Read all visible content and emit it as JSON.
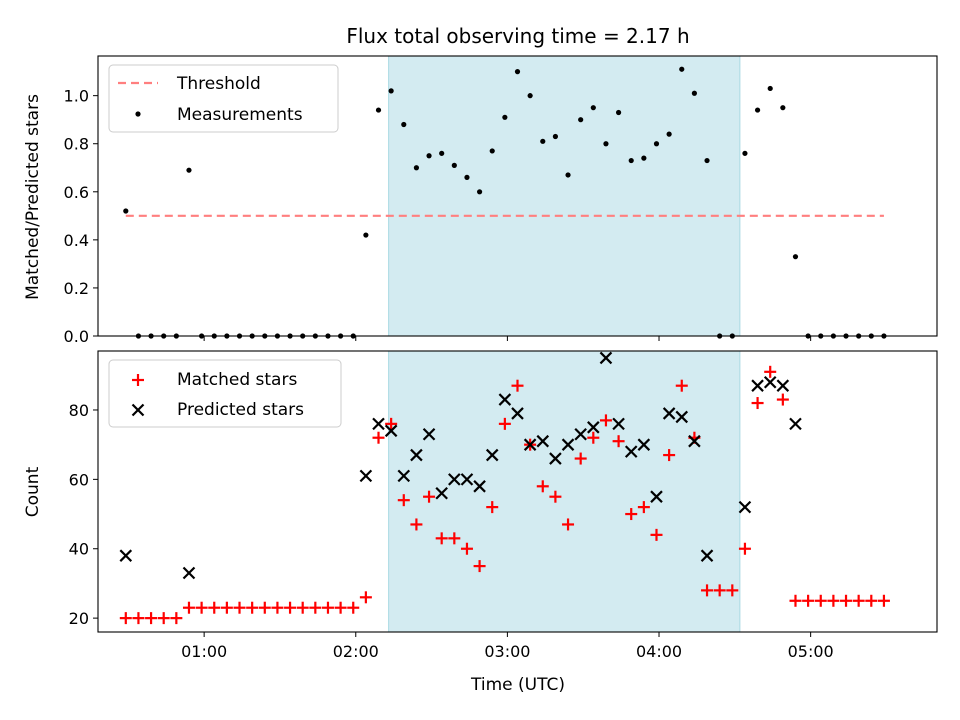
{
  "chart_data": [
    {
      "type": "scatter",
      "title": "Flux total observing time = 2.17 h",
      "xlabel": "",
      "ylabel": "Matched/Predicted stars",
      "ylim": [
        0,
        1.165
      ],
      "yticks": [
        "0.0",
        "0.2",
        "0.4",
        "0.6",
        "0.8",
        "1.0"
      ],
      "xlim": [
        "00:18",
        "05:50"
      ],
      "x_tick_marks": [
        "01:00",
        "02:00",
        "03:00",
        "04:00",
        "05:00"
      ],
      "shaded_interval": [
        "02:13",
        "04:32"
      ],
      "legend_position": "upper left",
      "threshold": {
        "name": "Threshold",
        "color": "#ff7f7f",
        "value": 0.5,
        "x": [
          "00:29",
          "05:29"
        ]
      },
      "series": [
        {
          "name": "Measurements",
          "color": "#000000",
          "points": [
            [
              "00:29",
              0.52
            ],
            [
              "00:34",
              0.0
            ],
            [
              "00:39",
              0.0
            ],
            [
              "00:44",
              0.0
            ],
            [
              "00:49",
              0.0
            ],
            [
              "00:54",
              0.69
            ],
            [
              "00:59",
              0.0
            ],
            [
              "01:04",
              0.0
            ],
            [
              "01:09",
              0.0
            ],
            [
              "01:14",
              0.0
            ],
            [
              "01:19",
              0.0
            ],
            [
              "01:24",
              0.0
            ],
            [
              "01:29",
              0.0
            ],
            [
              "01:34",
              0.0
            ],
            [
              "01:39",
              0.0
            ],
            [
              "01:44",
              0.0
            ],
            [
              "01:49",
              0.0
            ],
            [
              "01:54",
              0.0
            ],
            [
              "01:59",
              0.0
            ],
            [
              "02:04",
              0.42
            ],
            [
              "02:09",
              0.94
            ],
            [
              "02:14",
              1.02
            ],
            [
              "02:19",
              0.88
            ],
            [
              "02:24",
              0.7
            ],
            [
              "02:29",
              0.75
            ],
            [
              "02:34",
              0.76
            ],
            [
              "02:39",
              0.71
            ],
            [
              "02:44",
              0.66
            ],
            [
              "02:49",
              0.6
            ],
            [
              "02:54",
              0.77
            ],
            [
              "02:59",
              0.91
            ],
            [
              "03:04",
              1.1
            ],
            [
              "03:09",
              1.0
            ],
            [
              "03:14",
              0.81
            ],
            [
              "03:19",
              0.83
            ],
            [
              "03:24",
              0.67
            ],
            [
              "03:29",
              0.9
            ],
            [
              "03:34",
              0.95
            ],
            [
              "03:39",
              0.8
            ],
            [
              "03:44",
              0.93
            ],
            [
              "03:49",
              0.73
            ],
            [
              "03:54",
              0.74
            ],
            [
              "03:59",
              0.8
            ],
            [
              "04:04",
              0.84
            ],
            [
              "04:09",
              1.11
            ],
            [
              "04:14",
              1.01
            ],
            [
              "04:19",
              0.73
            ],
            [
              "04:24",
              0.0
            ],
            [
              "04:29",
              0.0
            ],
            [
              "04:34",
              0.76
            ],
            [
              "04:39",
              0.94
            ],
            [
              "04:44",
              1.03
            ],
            [
              "04:49",
              0.95
            ],
            [
              "04:54",
              0.33
            ],
            [
              "04:59",
              0.0
            ],
            [
              "05:04",
              0.0
            ],
            [
              "05:09",
              0.0
            ],
            [
              "05:14",
              0.0
            ],
            [
              "05:19",
              0.0
            ],
            [
              "05:24",
              0.0
            ],
            [
              "05:29",
              0.0
            ]
          ]
        }
      ]
    },
    {
      "type": "scatter",
      "title": "",
      "xlabel": "Time (UTC)",
      "ylabel": "Count",
      "ylim": [
        16,
        97
      ],
      "yticks": [
        "20",
        "40",
        "60",
        "80"
      ],
      "xlim": [
        "00:18",
        "05:50"
      ],
      "xticks": [
        "01:00",
        "02:00",
        "03:00",
        "04:00",
        "05:00"
      ],
      "shaded_interval": [
        "02:13",
        "04:32"
      ],
      "legend_position": "upper left",
      "series": [
        {
          "name": "Matched stars",
          "color": "#ff0000",
          "marker": "+",
          "points": [
            [
              "00:29",
              20
            ],
            [
              "00:34",
              20
            ],
            [
              "00:39",
              20
            ],
            [
              "00:44",
              20
            ],
            [
              "00:49",
              20
            ],
            [
              "00:54",
              23
            ],
            [
              "00:59",
              23
            ],
            [
              "01:04",
              23
            ],
            [
              "01:09",
              23
            ],
            [
              "01:14",
              23
            ],
            [
              "01:19",
              23
            ],
            [
              "01:24",
              23
            ],
            [
              "01:29",
              23
            ],
            [
              "01:34",
              23
            ],
            [
              "01:39",
              23
            ],
            [
              "01:44",
              23
            ],
            [
              "01:49",
              23
            ],
            [
              "01:54",
              23
            ],
            [
              "01:59",
              23
            ],
            [
              "02:04",
              26
            ],
            [
              "02:09",
              72
            ],
            [
              "02:14",
              76
            ],
            [
              "02:19",
              54
            ],
            [
              "02:24",
              47
            ],
            [
              "02:29",
              55
            ],
            [
              "02:34",
              43
            ],
            [
              "02:39",
              43
            ],
            [
              "02:44",
              40
            ],
            [
              "02:49",
              35
            ],
            [
              "02:54",
              52
            ],
            [
              "02:59",
              76
            ],
            [
              "03:04",
              87
            ],
            [
              "03:09",
              70
            ],
            [
              "03:14",
              58
            ],
            [
              "03:19",
              55
            ],
            [
              "03:24",
              47
            ],
            [
              "03:29",
              66
            ],
            [
              "03:34",
              72
            ],
            [
              "03:39",
              77
            ],
            [
              "03:44",
              71
            ],
            [
              "03:49",
              50
            ],
            [
              "03:54",
              52
            ],
            [
              "03:59",
              44
            ],
            [
              "04:04",
              67
            ],
            [
              "04:09",
              87
            ],
            [
              "04:14",
              72
            ],
            [
              "04:19",
              28
            ],
            [
              "04:24",
              28
            ],
            [
              "04:29",
              28
            ],
            [
              "04:34",
              40
            ],
            [
              "04:39",
              82
            ],
            [
              "04:44",
              91
            ],
            [
              "04:49",
              83
            ],
            [
              "04:54",
              25
            ],
            [
              "04:59",
              25
            ],
            [
              "05:04",
              25
            ],
            [
              "05:09",
              25
            ],
            [
              "05:14",
              25
            ],
            [
              "05:19",
              25
            ],
            [
              "05:24",
              25
            ],
            [
              "05:29",
              25
            ]
          ]
        },
        {
          "name": "Predicted stars",
          "color": "#000000",
          "marker": "x",
          "points": [
            [
              "00:29",
              38
            ],
            [
              "00:54",
              33
            ],
            [
              "02:04",
              61
            ],
            [
              "02:09",
              76
            ],
            [
              "02:14",
              74
            ],
            [
              "02:19",
              61
            ],
            [
              "02:24",
              67
            ],
            [
              "02:29",
              73
            ],
            [
              "02:34",
              56
            ],
            [
              "02:39",
              60
            ],
            [
              "02:44",
              60
            ],
            [
              "02:49",
              58
            ],
            [
              "02:54",
              67
            ],
            [
              "02:59",
              83
            ],
            [
              "03:04",
              79
            ],
            [
              "03:09",
              70
            ],
            [
              "03:14",
              71
            ],
            [
              "03:19",
              66
            ],
            [
              "03:24",
              70
            ],
            [
              "03:29",
              73
            ],
            [
              "03:34",
              75
            ],
            [
              "03:39",
              95
            ],
            [
              "03:44",
              76
            ],
            [
              "03:49",
              68
            ],
            [
              "03:54",
              70
            ],
            [
              "03:59",
              55
            ],
            [
              "04:04",
              79
            ],
            [
              "04:09",
              78
            ],
            [
              "04:14",
              71
            ],
            [
              "04:19",
              38
            ],
            [
              "04:34",
              52
            ],
            [
              "04:39",
              87
            ],
            [
              "04:44",
              88
            ],
            [
              "04:49",
              87
            ],
            [
              "04:54",
              76
            ]
          ]
        }
      ]
    }
  ]
}
